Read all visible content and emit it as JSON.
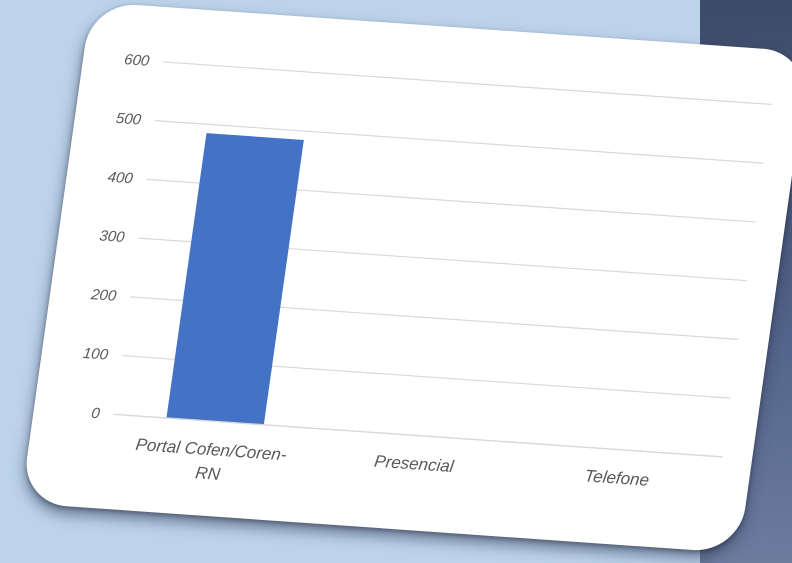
{
  "chart_data": {
    "type": "bar",
    "categories": [
      "Portal Cofen/Coren-RN",
      "Presencial",
      "Telefone"
    ],
    "category_label_lines": [
      [
        "Portal Cofen/Coren-",
        "RN"
      ],
      [
        "Presencial"
      ],
      [
        "Telefone"
      ]
    ],
    "values": [
      485,
      0,
      0
    ],
    "yticks": [
      "0",
      "100",
      "200",
      "300",
      "400",
      "500",
      "600"
    ],
    "ylim": [
      0,
      600
    ],
    "grid": true,
    "legend": false,
    "bar_color": "#4472c4",
    "grid_color": "#d9d9d9"
  }
}
